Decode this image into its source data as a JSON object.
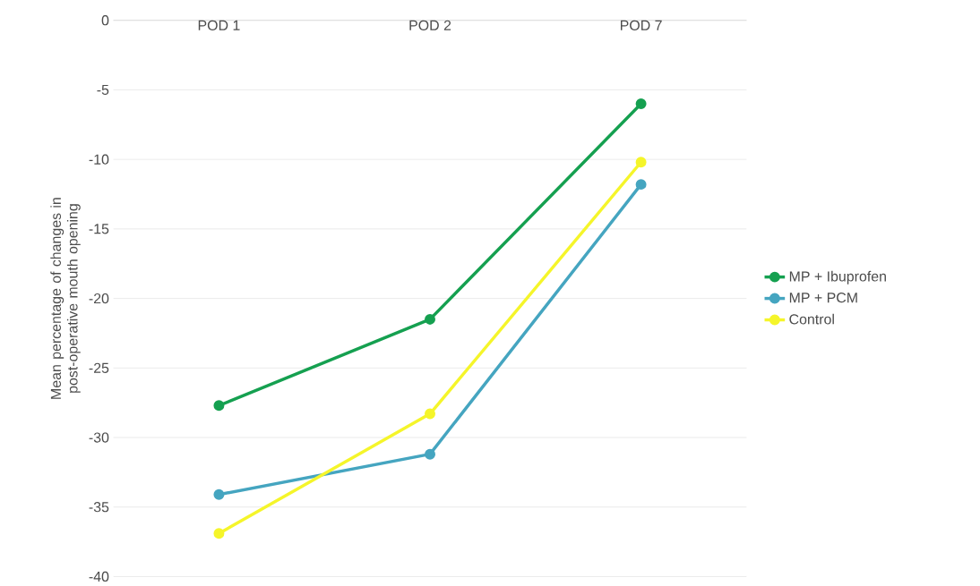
{
  "chart_data": {
    "type": "line",
    "ylabel": "Mean percentage of changes in post-operative mouth opening",
    "categories": [
      "POD 1",
      "POD 2",
      "POD 7"
    ],
    "series": [
      {
        "name": "MP + Ibuprofen",
        "color": "#15a050",
        "values": [
          -27.7,
          -21.5,
          -6.0
        ]
      },
      {
        "name": "MP + PCM",
        "color": "#45a5c0",
        "values": [
          -34.1,
          -31.2,
          -11.8
        ]
      },
      {
        "name": "Control",
        "color": "#f5f52a",
        "values": [
          -36.9,
          -28.3,
          -10.2
        ]
      }
    ],
    "ylim": [
      -40,
      0
    ],
    "yticks": [
      0,
      -5,
      -10,
      -15,
      -20,
      -25,
      -30,
      -35,
      -40
    ],
    "grid": "y",
    "legend": "right",
    "marker": "circle",
    "line_style": "solid"
  }
}
